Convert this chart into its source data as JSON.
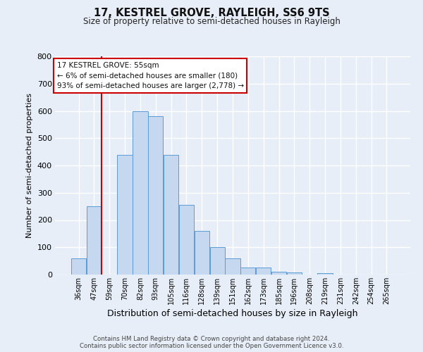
{
  "title": "17, KESTREL GROVE, RAYLEIGH, SS6 9TS",
  "subtitle": "Size of property relative to semi-detached houses in Rayleigh",
  "xlabel": "Distribution of semi-detached houses by size in Rayleigh",
  "ylabel": "Number of semi-detached properties",
  "categories": [
    "36sqm",
    "47sqm",
    "59sqm",
    "70sqm",
    "82sqm",
    "93sqm",
    "105sqm",
    "116sqm",
    "128sqm",
    "139sqm",
    "151sqm",
    "162sqm",
    "173sqm",
    "185sqm",
    "196sqm",
    "208sqm",
    "219sqm",
    "231sqm",
    "242sqm",
    "254sqm",
    "265sqm"
  ],
  "bar_heights": [
    60,
    250,
    0,
    440,
    600,
    580,
    440,
    255,
    160,
    100,
    60,
    25,
    25,
    10,
    8,
    0,
    5,
    0,
    0,
    0,
    0
  ],
  "bar_color": "#c5d8f0",
  "bar_edge_color": "#5b9bd5",
  "bg_color": "#e8eef7",
  "grid_color": "#ffffff",
  "annotation_title": "17 KESTREL GROVE: 55sqm",
  "annotation_line1": "← 6% of semi-detached houses are smaller (180)",
  "annotation_line2": "93% of semi-detached houses are larger (2,778) →",
  "vline_color": "#cc0000",
  "vline_position": 1.5,
  "ylim_max": 800,
  "footer_line1": "Contains HM Land Registry data © Crown copyright and database right 2024.",
  "footer_line2": "Contains public sector information licensed under the Open Government Licence v3.0."
}
